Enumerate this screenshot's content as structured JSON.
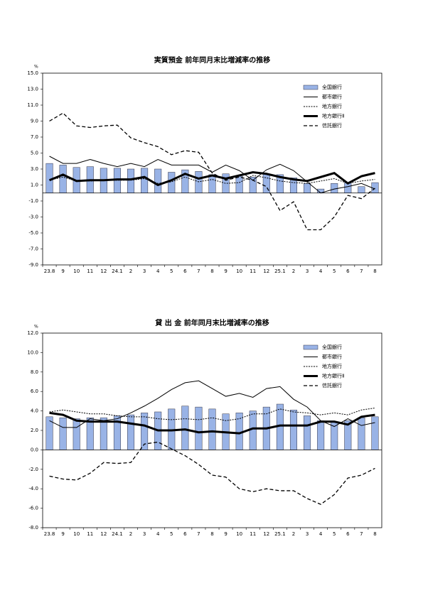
{
  "chart_data": [
    {
      "type": "combo",
      "title": "実質預金 前年同月末比増減率の推移",
      "unit": "%",
      "categories": [
        "23.8",
        "9",
        "10",
        "11",
        "12",
        "24.1",
        "2",
        "3",
        "4",
        "5",
        "6",
        "7",
        "8",
        "9",
        "10",
        "11",
        "12",
        "25.1",
        "2",
        "3",
        "4",
        "5",
        "6",
        "7",
        "8"
      ],
      "ylim": [
        -9,
        15
      ],
      "yticks": [
        {
          "value": -9,
          "label": "-9.0"
        },
        {
          "value": -7,
          "label": "-7.0"
        },
        {
          "value": -5,
          "label": "-5.0"
        },
        {
          "value": -3,
          "label": "-3.0"
        },
        {
          "value": -1,
          "label": "-1.0"
        },
        {
          "value": 1,
          "label": "1.0"
        },
        {
          "value": 3,
          "label": "3.0"
        },
        {
          "value": 5,
          "label": "5.0"
        },
        {
          "value": 7,
          "label": "7.0"
        },
        {
          "value": 9,
          "label": "9.0"
        },
        {
          "value": 11,
          "label": "11.0"
        },
        {
          "value": 13,
          "label": "13.0"
        },
        {
          "value": 15,
          "label": "15.0"
        }
      ],
      "grid": false,
      "legend": "upper right",
      "series": [
        {
          "name": "全国銀行",
          "type": "bar",
          "color": "#99b3e6",
          "values": [
            3.7,
            3.5,
            3.2,
            3.3,
            3.1,
            3.1,
            3.0,
            3.1,
            3.0,
            2.6,
            2.9,
            2.7,
            2.3,
            2.4,
            2.1,
            2.0,
            2.4,
            2.3,
            1.9,
            1.2,
            0.5,
            1.2,
            1.3,
            0.8,
            1.3
          ]
        },
        {
          "name": "都市銀行",
          "type": "line",
          "color": "#000000",
          "dash": "none",
          "width": 1,
          "values": [
            4.6,
            3.7,
            3.7,
            4.2,
            3.7,
            3.3,
            3.7,
            3.3,
            4.2,
            3.5,
            3.5,
            3.5,
            2.6,
            3.5,
            2.8,
            1.6,
            2.9,
            3.6,
            2.8,
            1.4,
            0.0,
            0.5,
            0.8,
            1.2,
            0.5
          ]
        },
        {
          "name": "地方銀行",
          "type": "line",
          "color": "#000000",
          "dash": "2,1.5",
          "width": 1,
          "values": [
            1.6,
            2.0,
            1.5,
            1.5,
            1.6,
            1.6,
            1.6,
            1.8,
            1.2,
            1.4,
            2.0,
            1.4,
            1.7,
            1.2,
            1.3,
            2.2,
            1.9,
            1.5,
            1.3,
            1.2,
            1.5,
            1.8,
            1.2,
            1.5,
            1.7
          ]
        },
        {
          "name": "地方銀行Ⅱ",
          "type": "line",
          "color": "#000000",
          "dash": "none",
          "width": 3,
          "values": [
            1.6,
            2.3,
            1.5,
            1.6,
            1.6,
            1.7,
            1.7,
            2.0,
            1.0,
            1.6,
            2.4,
            1.8,
            2.2,
            1.8,
            2.2,
            2.6,
            2.4,
            2.0,
            1.7,
            1.5,
            2.0,
            2.5,
            1.2,
            2.1,
            2.5
          ]
        },
        {
          "name": "信託銀行",
          "type": "line",
          "color": "#000000",
          "dash": "5,3",
          "width": 1.3,
          "values": [
            9.0,
            10.0,
            8.4,
            8.2,
            8.4,
            8.5,
            6.9,
            6.3,
            5.8,
            4.8,
            5.3,
            5.1,
            2.5,
            1.6,
            2.0,
            1.6,
            0.8,
            -2.2,
            -1.1,
            -4.6,
            -4.6,
            -3.0,
            -0.3,
            -0.7,
            0.6
          ]
        }
      ]
    },
    {
      "type": "combo",
      "title": "貸 出 金 前年同月末比増減率の推移",
      "unit": "%",
      "categories": [
        "23.8",
        "9",
        "10",
        "11",
        "12",
        "24.1",
        "2",
        "3",
        "4",
        "5",
        "6",
        "7",
        "8",
        "9",
        "10",
        "11",
        "12",
        "25.1",
        "2",
        "3",
        "4",
        "5",
        "6",
        "7",
        "8"
      ],
      "ylim": [
        -8,
        12
      ],
      "yticks": [
        {
          "value": -8,
          "label": "-8.0"
        },
        {
          "value": -6,
          "label": "-6.0"
        },
        {
          "value": -4,
          "label": "-4.0"
        },
        {
          "value": -2,
          "label": "-2.0"
        },
        {
          "value": 0,
          "label": "0.0"
        },
        {
          "value": 2,
          "label": "2.0"
        },
        {
          "value": 4,
          "label": "4.0"
        },
        {
          "value": 6,
          "label": "6.0"
        },
        {
          "value": 8,
          "label": "8.0"
        },
        {
          "value": 10,
          "label": "10.0"
        },
        {
          "value": 12,
          "label": "12.0"
        }
      ],
      "grid": false,
      "legend": "upper right",
      "series": [
        {
          "name": "全国銀行",
          "type": "bar",
          "color": "#99b3e6",
          "values": [
            3.4,
            3.3,
            3.2,
            3.3,
            3.3,
            3.5,
            3.6,
            3.8,
            3.9,
            4.2,
            4.5,
            4.4,
            4.2,
            3.7,
            3.8,
            4.0,
            4.4,
            4.7,
            4.1,
            3.5,
            3.0,
            2.9,
            3.0,
            3.3,
            3.4
          ]
        },
        {
          "name": "都市銀行",
          "type": "line",
          "color": "#000000",
          "dash": "none",
          "width": 1,
          "values": [
            3.0,
            2.3,
            2.3,
            3.2,
            3.0,
            3.2,
            3.8,
            4.5,
            5.3,
            6.2,
            6.9,
            7.1,
            6.3,
            5.5,
            5.8,
            5.4,
            6.3,
            6.5,
            5.2,
            4.4,
            3.0,
            2.4,
            3.2,
            2.5,
            2.8
          ]
        },
        {
          "name": "地方銀行",
          "type": "line",
          "color": "#000000",
          "dash": "2,1.5",
          "width": 1,
          "values": [
            3.9,
            4.1,
            3.9,
            3.7,
            3.7,
            3.5,
            3.4,
            3.4,
            3.2,
            3.1,
            3.2,
            3.1,
            3.3,
            3.0,
            3.2,
            3.7,
            3.7,
            4.2,
            3.9,
            3.8,
            3.6,
            3.8,
            3.6,
            4.1,
            4.3
          ]
        },
        {
          "name": "地方銀行Ⅱ",
          "type": "line",
          "color": "#000000",
          "dash": "none",
          "width": 3,
          "values": [
            3.8,
            3.6,
            3.0,
            2.9,
            2.9,
            2.9,
            2.7,
            2.5,
            2.0,
            2.0,
            2.1,
            1.8,
            1.9,
            1.8,
            1.7,
            2.2,
            2.2,
            2.5,
            2.5,
            2.5,
            2.9,
            2.9,
            2.6,
            3.4,
            3.6
          ]
        },
        {
          "name": "信託銀行",
          "type": "line",
          "color": "#000000",
          "dash": "5,3",
          "width": 1.3,
          "values": [
            -2.7,
            -3.0,
            -3.1,
            -2.4,
            -1.3,
            -1.4,
            -1.3,
            0.6,
            0.8,
            0.1,
            -0.6,
            -1.5,
            -2.6,
            -2.8,
            -4.0,
            -4.3,
            -4.0,
            -4.2,
            -4.2,
            -5.0,
            -5.6,
            -4.6,
            -2.9,
            -2.6,
            -1.9
          ]
        }
      ]
    }
  ]
}
